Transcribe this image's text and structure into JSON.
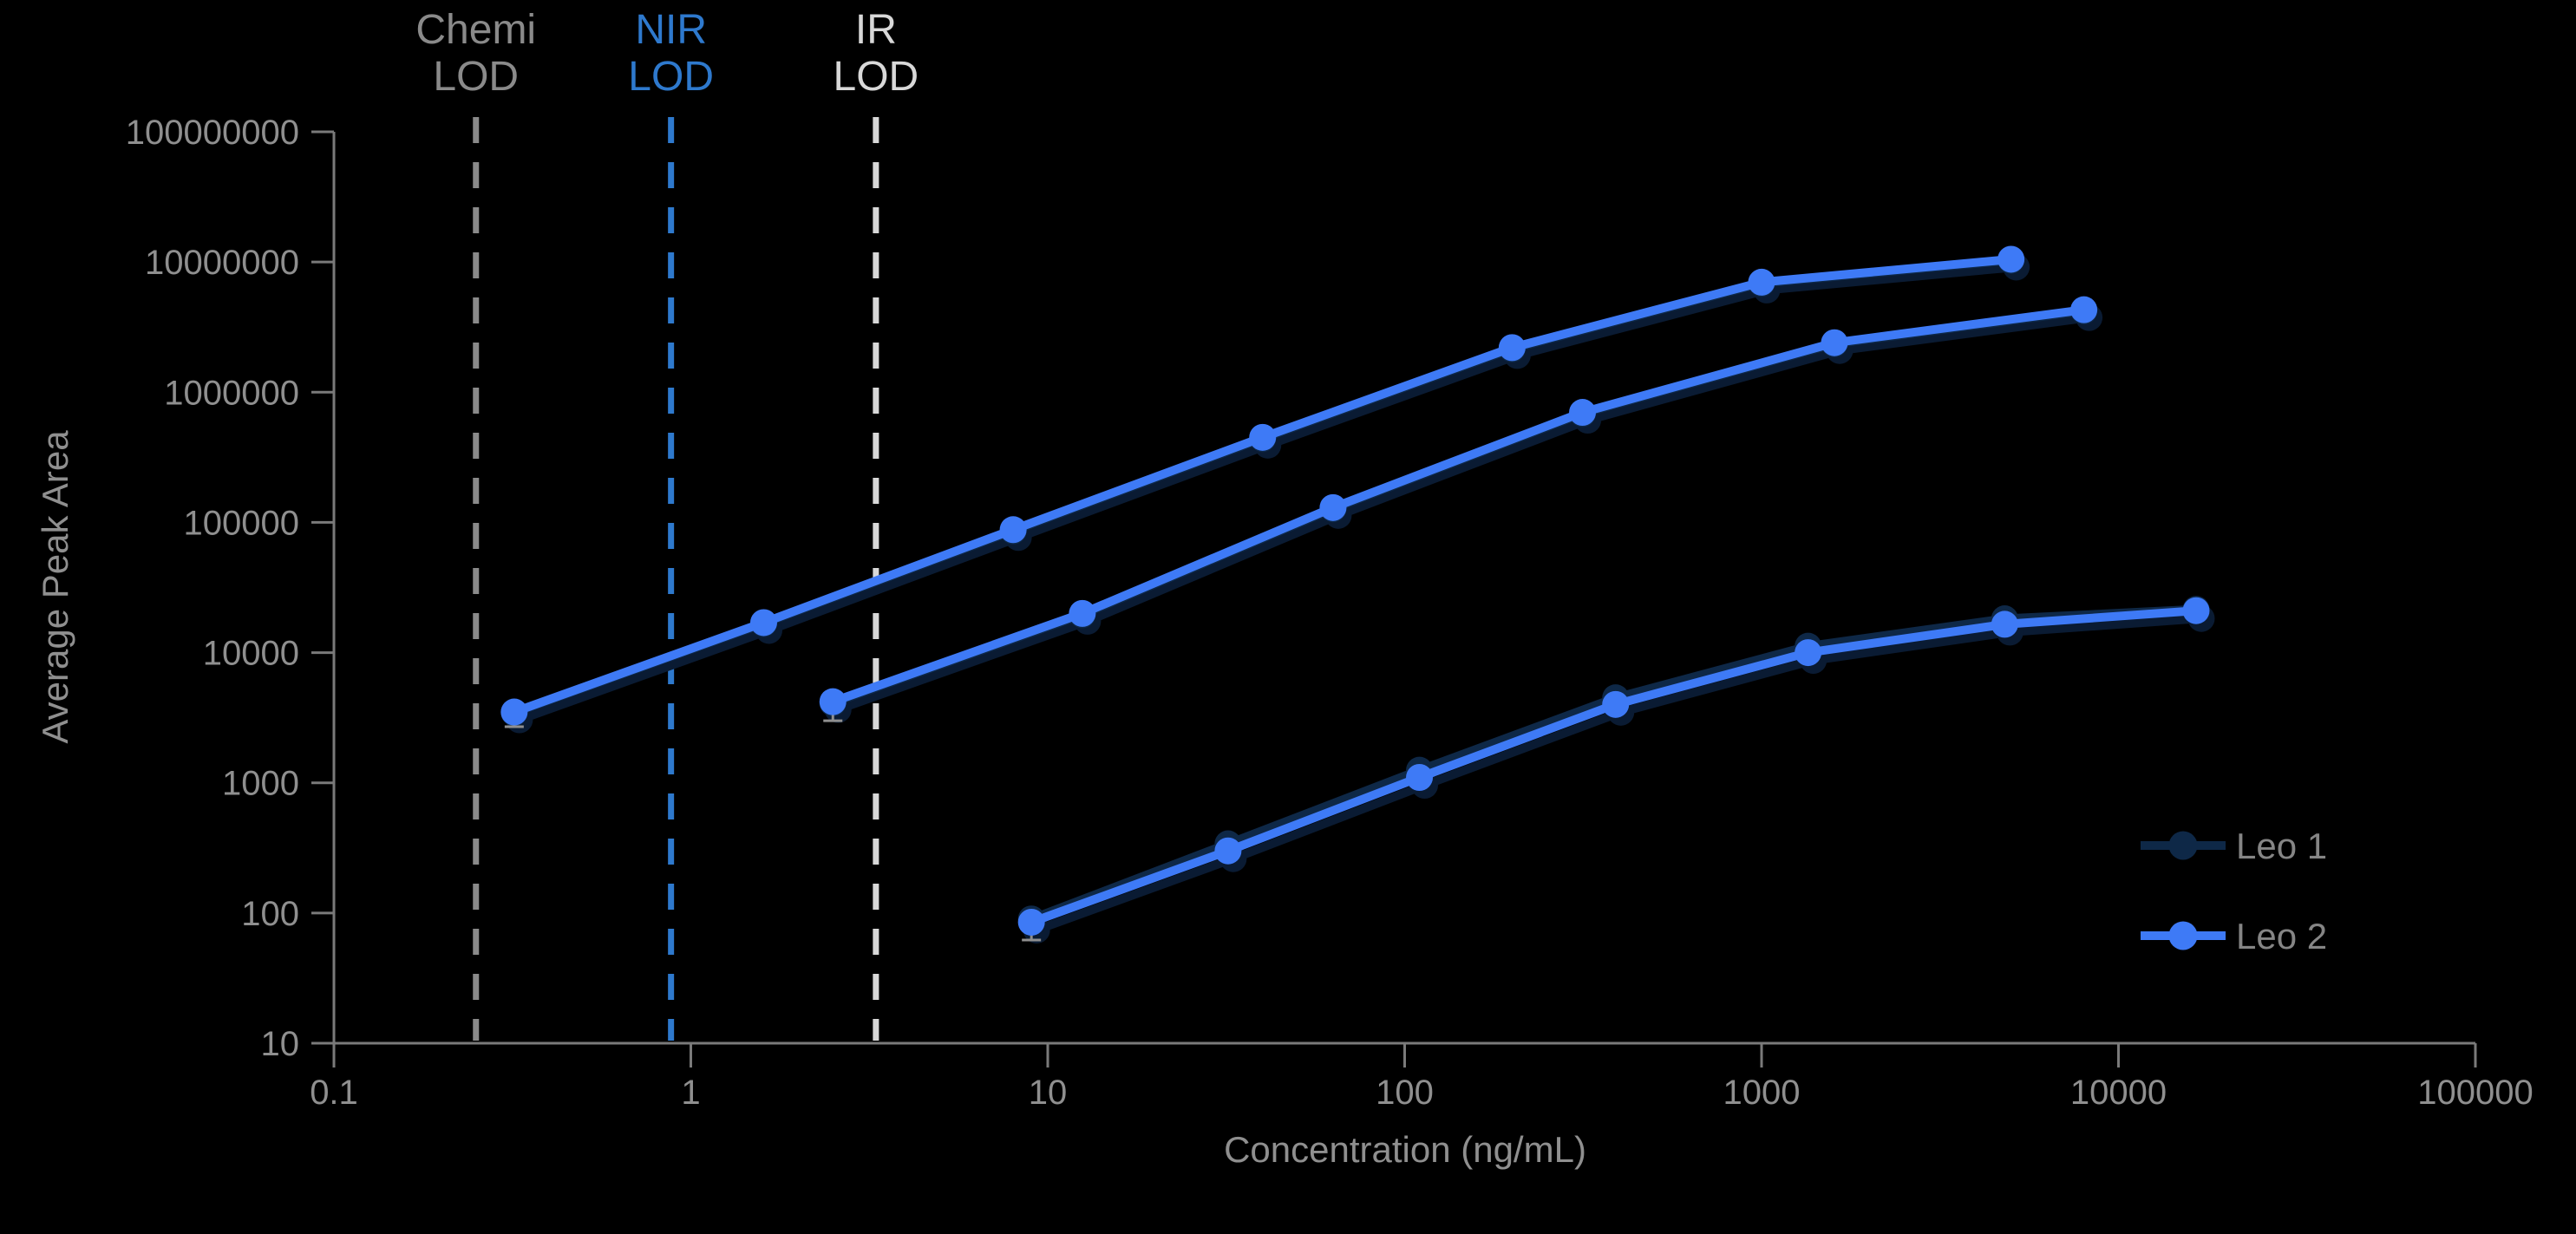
{
  "chart_data": {
    "type": "line",
    "title": "",
    "xlabel": "Concentration (ng/mL)",
    "ylabel": "Average Peak Area",
    "x_scale": "log",
    "y_scale": "log",
    "xlim": [
      0.1,
      100000
    ],
    "ylim": [
      10,
      100000000
    ],
    "x_ticks": [
      "0.1",
      "1",
      "10",
      "100",
      "1000",
      "10000",
      "100000"
    ],
    "y_ticks": [
      "10",
      "100",
      "1000",
      "10000",
      "100000",
      "1000000",
      "10000000",
      "100000000"
    ],
    "grid": "off",
    "legend_position": "right-lower",
    "lod_lines": [
      {
        "line1": "Chemi",
        "line2": "LOD",
        "x": 0.25,
        "color": "#8A8A8A"
      },
      {
        "line1": "NIR",
        "line2": "LOD",
        "x": 0.88,
        "color": "#2E79CD"
      },
      {
        "line1": "IR",
        "line2": "LOD",
        "x": 3.3,
        "color": "#D8D8D8"
      }
    ],
    "legend": [
      {
        "label": "Leo 1",
        "color": "#0E2847"
      },
      {
        "label": "Leo 2",
        "color": "#3E7AF6"
      }
    ],
    "groups": [
      {
        "name": "curve-top-chemi-range",
        "x": [
          0.32,
          1.6,
          8,
          40,
          200,
          1000,
          5000
        ],
        "series": [
          {
            "name": "Leo 1",
            "y": [
              3450,
              16700,
              86000,
              440000,
              2150000,
              6850000,
              10300000
            ]
          },
          {
            "name": "Leo 2",
            "y": [
              3500,
              17000,
              88000,
              450000,
              2200000,
              7000000,
              10500000
            ]
          }
        ],
        "error_bars": [
          {
            "x": 0.32,
            "y_point": 3500,
            "y_bottom": 2700
          }
        ]
      },
      {
        "name": "curve-middle-nir-range",
        "x": [
          2.5,
          12.5,
          63,
          315,
          1600,
          8000
        ],
        "series": [
          {
            "name": "Leo 1",
            "y": [
              4100,
              19500,
              127000,
              685000,
              2350000,
              4200000
            ]
          },
          {
            "name": "Leo 2",
            "y": [
              4200,
              20000,
              130000,
              700000,
              2400000,
              4300000
            ]
          }
        ],
        "error_bars": [
          {
            "x": 2.5,
            "y_point": 4200,
            "y_bottom": 3000
          }
        ]
      },
      {
        "name": "curve-bottom-ir-range",
        "x": [
          9,
          32,
          110,
          390,
          1350,
          4800,
          16500
        ],
        "series": [
          {
            "name": "Leo 1",
            "y": [
              90,
              340,
              1250,
              4500,
              11200,
              18200,
              21500
            ]
          },
          {
            "name": "Leo 2",
            "y": [
              85,
              300,
              1100,
              4000,
              10000,
              16500,
              21000
            ]
          }
        ],
        "error_bars": [
          {
            "x": 9,
            "y_point": 85,
            "y_bottom": 62
          }
        ]
      }
    ],
    "colors": {
      "background": "#000000",
      "axis": "#7A7A7A",
      "tick_label": "#8F8F8F",
      "axis_title": "#8F8F8F",
      "legend_text": "#858585",
      "leo1": "#0E2847",
      "leo2": "#3E7AF6",
      "line_shadow": "#0A1B33",
      "error_bar": "#8F8F8F"
    }
  }
}
